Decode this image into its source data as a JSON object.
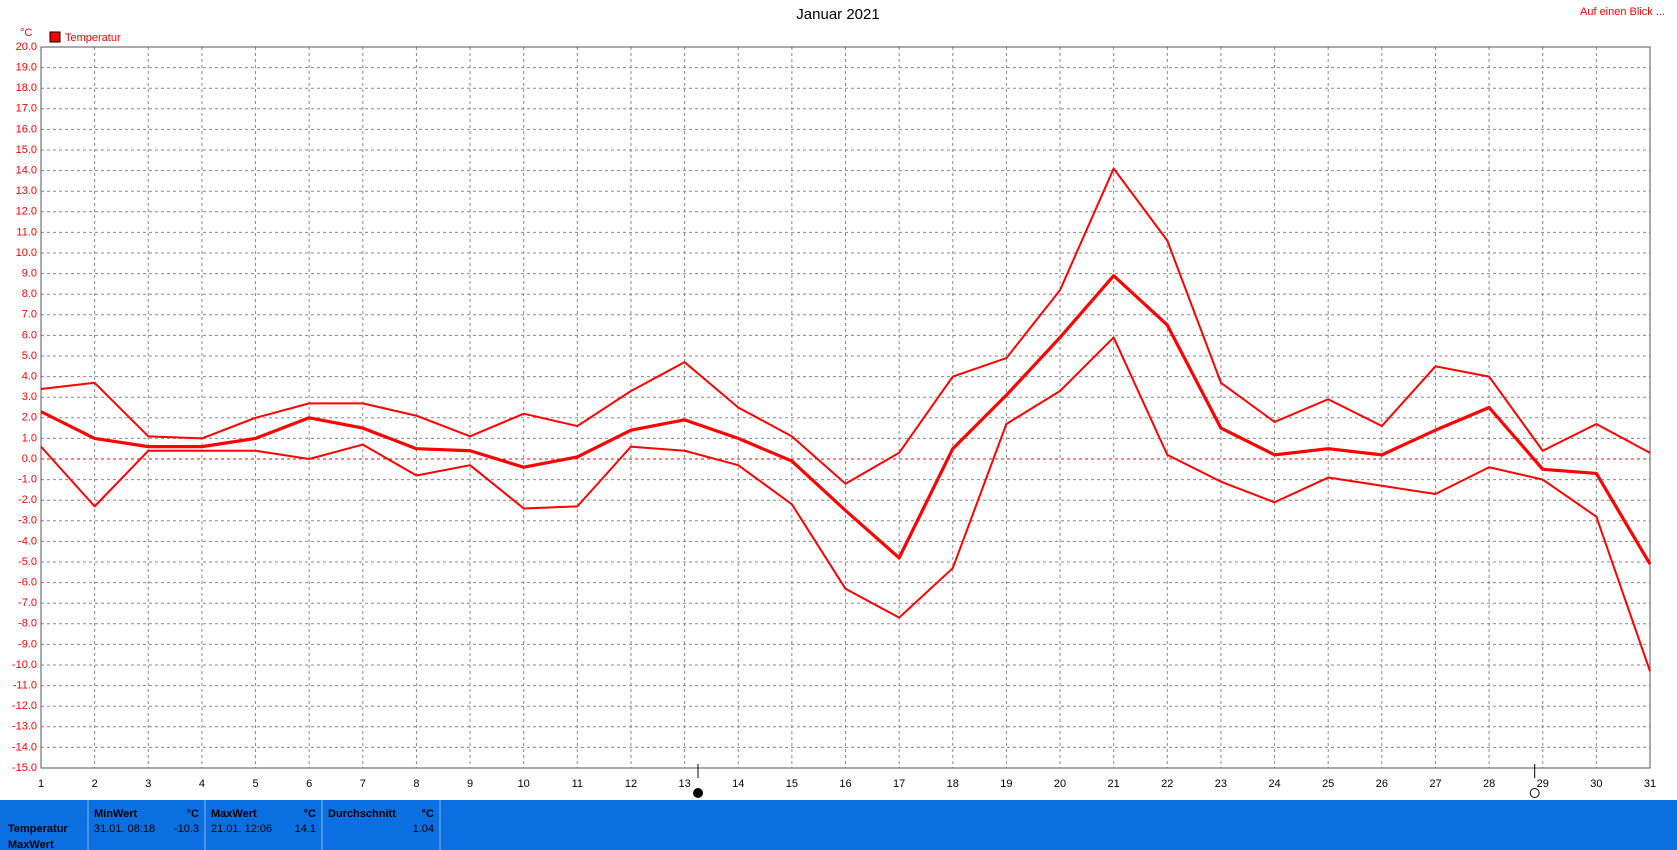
{
  "chart_data": {
    "type": "line",
    "title": "Januar 2021",
    "unit_label": "°C",
    "legend": [
      "Temperatur"
    ],
    "legend_color": "#ff0000",
    "link": "Auf einen Blick ...",
    "x": [
      1,
      2,
      3,
      4,
      5,
      6,
      7,
      8,
      9,
      10,
      11,
      12,
      13,
      14,
      15,
      16,
      17,
      18,
      19,
      20,
      21,
      22,
      23,
      24,
      25,
      26,
      27,
      28,
      29,
      30,
      31
    ],
    "xlim": [
      1,
      31
    ],
    "xticks": [
      1,
      2,
      3,
      4,
      5,
      6,
      7,
      8,
      9,
      10,
      11,
      12,
      13,
      14,
      15,
      16,
      17,
      18,
      19,
      20,
      21,
      22,
      23,
      24,
      25,
      26,
      27,
      28,
      29,
      30,
      31
    ],
    "ylim": [
      -15,
      20
    ],
    "yticks": [
      {
        "value": -15,
        "label": "-15.0"
      },
      {
        "value": -14,
        "label": "-14.0"
      },
      {
        "value": -13,
        "label": "-13.0"
      },
      {
        "value": -12,
        "label": "-12.0"
      },
      {
        "value": -11,
        "label": "-11.0"
      },
      {
        "value": -10,
        "label": "-10.0"
      },
      {
        "value": -9,
        "label": "-9.0"
      },
      {
        "value": -8,
        "label": "-8.0"
      },
      {
        "value": -7,
        "label": "-7.0"
      },
      {
        "value": -6,
        "label": "-6.0"
      },
      {
        "value": -5,
        "label": "-5.0"
      },
      {
        "value": -4,
        "label": "-4.0"
      },
      {
        "value": -3,
        "label": "-3.0"
      },
      {
        "value": -2,
        "label": "-2.0"
      },
      {
        "value": -1,
        "label": "-1.0"
      },
      {
        "value": 0,
        "label": "0.0"
      },
      {
        "value": 1,
        "label": "1.0"
      },
      {
        "value": 2,
        "label": "2.0"
      },
      {
        "value": 3,
        "label": "3.0"
      },
      {
        "value": 4,
        "label": "4.0"
      },
      {
        "value": 5,
        "label": "5.0"
      },
      {
        "value": 6,
        "label": "6.0"
      },
      {
        "value": 7,
        "label": "7.0"
      },
      {
        "value": 8,
        "label": "8.0"
      },
      {
        "value": 9,
        "label": "9.0"
      },
      {
        "value": 10,
        "label": "10.0"
      },
      {
        "value": 11,
        "label": "11.0"
      },
      {
        "value": 12,
        "label": "12.0"
      },
      {
        "value": 13,
        "label": "13.0"
      },
      {
        "value": 14,
        "label": "14.0"
      },
      {
        "value": 15,
        "label": "15.0"
      },
      {
        "value": 16,
        "label": "16.0"
      },
      {
        "value": 17,
        "label": "17.0"
      },
      {
        "value": 18,
        "label": "18.0"
      },
      {
        "value": 19,
        "label": "19.0"
      },
      {
        "value": 20,
        "label": "20.0"
      }
    ],
    "grid": true,
    "zero_line": true,
    "series": [
      {
        "color": "#ff0000",
        "width": 2,
        "values": [
          3.4,
          3.7,
          1.1,
          1.0,
          2.0,
          2.7,
          2.7,
          2.1,
          1.1,
          2.2,
          1.6,
          3.3,
          4.7,
          2.5,
          1.1,
          -1.2,
          0.3,
          4.0,
          4.9,
          8.2,
          14.1,
          10.6,
          3.7,
          1.8,
          2.9,
          1.6,
          4.5,
          4.0,
          0.4,
          1.7,
          0.3
        ]
      },
      {
        "color": "#ff0000",
        "width": 3.2,
        "values": [
          2.3,
          1.0,
          0.6,
          0.6,
          1.0,
          2.0,
          1.5,
          0.5,
          0.4,
          -0.4,
          0.1,
          1.4,
          1.9,
          1.0,
          -0.1,
          -2.5,
          -4.8,
          0.5,
          3.1,
          5.9,
          8.9,
          6.5,
          1.5,
          0.2,
          0.5,
          0.2,
          1.4,
          2.5,
          -0.5,
          -0.7,
          -5.1
        ]
      },
      {
        "color": "#ff0000",
        "width": 2,
        "values": [
          0.6,
          -2.3,
          0.4,
          0.4,
          0.4,
          0.0,
          0.7,
          -0.8,
          -0.3,
          -2.4,
          -2.3,
          0.6,
          0.4,
          -0.3,
          -2.2,
          -6.3,
          -7.7,
          -5.3,
          1.7,
          3.3,
          5.9,
          0.2,
          -1.1,
          -2.1,
          -0.9,
          -1.3,
          -1.7,
          -0.4,
          -1.0,
          -2.8,
          -10.3
        ]
      }
    ],
    "moon_phases": [
      {
        "x": 13.25,
        "filled": true
      },
      {
        "x": 28.85,
        "filled": false
      }
    ]
  },
  "summary": {
    "row_labels": [
      "Temperatur",
      "MaxWert"
    ],
    "columns": [
      {
        "header": "MinWert",
        "unit": "°C",
        "time": "31.01. 08:18",
        "value": -10.3
      },
      {
        "header": "MaxWert",
        "unit": "°C",
        "time": "21.01. 12:06",
        "value": 14.1
      },
      {
        "header": "Durchschnitt",
        "unit": "°C",
        "value": 1.04
      }
    ]
  }
}
